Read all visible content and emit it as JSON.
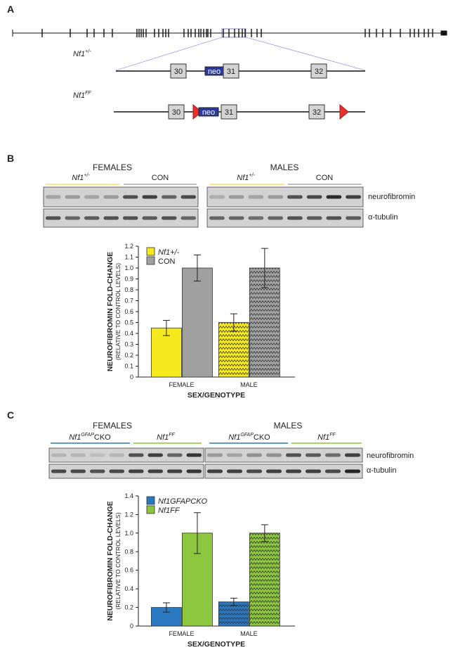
{
  "panel_labels": [
    "A",
    "B",
    "C"
  ],
  "panel_a": {
    "alleles": [
      {
        "name": {
          "base": "Nf1",
          "sup": "+/-"
        },
        "exons": [
          "30",
          "31",
          "32"
        ],
        "cassette": "neo"
      },
      {
        "name": {
          "base": "Nf1",
          "sup": "FF"
        },
        "exons": [
          "30",
          "31",
          "32"
        ],
        "cassette": "neo"
      }
    ]
  },
  "panel_b": {
    "sexes": [
      "FEMALES",
      "MALES"
    ],
    "genotype_1": {
      "base": "Nf1",
      "sup": "+/-"
    },
    "genotype_2": "CON",
    "blot_labels": [
      "neurofibromin",
      "α-tubulin"
    ]
  },
  "panel_c": {
    "sexes": [
      "FEMALES",
      "MALES"
    ],
    "genotype_1": {
      "base": "Nf1",
      "sup": "GFAP",
      "suffix": "CKO"
    },
    "genotype_2": {
      "base": "Nf1",
      "sup": "FF"
    },
    "blot_labels": [
      "neurofibromin",
      "α-tubulin"
    ]
  },
  "chart_data": [
    {
      "type": "bar",
      "ylabel": "NEUROFIBROMIN FOLD-CHANGE",
      "ylabel_sub": "(RELATIVE TO CONTROL LEVELS)",
      "xlabel": "SEX/GENOTYPE",
      "categories": [
        "FEMALE",
        "MALE"
      ],
      "patterned": [
        false,
        true
      ],
      "series": [
        {
          "name": "Nf1+/-",
          "color": "#f5ea1e",
          "values": [
            0.45,
            0.5
          ],
          "errors": [
            0.07,
            0.08
          ]
        },
        {
          "name": "CON",
          "color": "#a0a0a0",
          "values": [
            1.0,
            1.0
          ],
          "errors": [
            0.12,
            0.18
          ]
        }
      ],
      "ylim": [
        0,
        1.2
      ],
      "yticks": [
        0,
        0.1,
        0.2,
        0.3,
        0.4,
        0.5,
        0.6,
        0.7,
        0.8,
        0.9,
        {
          "value": 1,
          "label": "1.0"
        },
        1.1,
        1.2
      ],
      "legend": "upper left"
    },
    {
      "type": "bar",
      "ylabel": "NEUROFIBROMIN FOLD-CHANGE",
      "ylabel_sub": "(RELATIVE TO CONTROL LEVELS)",
      "xlabel": "SEX/GENOTYPE",
      "categories": [
        "FEMALE",
        "MALE"
      ],
      "patterned": [
        false,
        true
      ],
      "series": [
        {
          "name": "Nf1GFAPCKO",
          "color": "#2a78c0",
          "values": [
            0.2,
            0.26
          ],
          "errors": [
            0.05,
            0.04
          ]
        },
        {
          "name": "Nf1FF",
          "color": "#8cc63f",
          "values": [
            1.0,
            1.0
          ],
          "errors": [
            0.22,
            0.09
          ]
        }
      ],
      "ylim": [
        0,
        1.4
      ],
      "yticks": [
        0,
        0.2,
        0.4,
        0.6,
        0.8,
        {
          "value": 1,
          "label": "1.0"
        },
        1.2,
        1.4
      ],
      "legend": "upper left"
    }
  ]
}
